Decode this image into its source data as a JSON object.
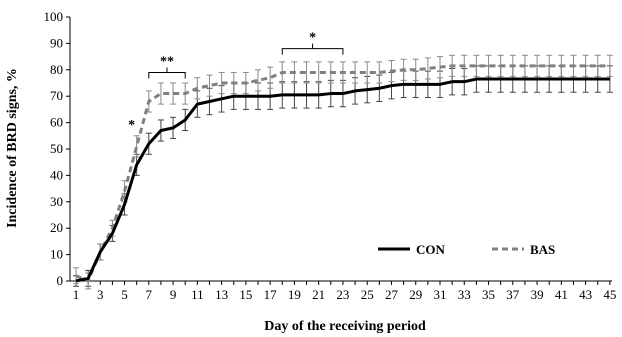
{
  "chart_data": {
    "type": "line",
    "xlabel": "Day of the receiving period",
    "ylabel": "Incidence of BRD signs, %",
    "xlim": [
      1,
      45
    ],
    "ylim": [
      0,
      100
    ],
    "x_ticks": [
      1,
      3,
      5,
      7,
      9,
      11,
      13,
      15,
      17,
      19,
      21,
      23,
      25,
      27,
      29,
      31,
      33,
      35,
      37,
      39,
      41,
      43,
      45
    ],
    "y_ticks": [
      0,
      10,
      20,
      30,
      40,
      50,
      60,
      70,
      80,
      90,
      100
    ],
    "grid": false,
    "legend_position": "bottom-right",
    "error_bars": true,
    "x": [
      1,
      2,
      3,
      4,
      5,
      6,
      7,
      8,
      9,
      10,
      11,
      12,
      13,
      14,
      15,
      16,
      17,
      18,
      19,
      20,
      21,
      22,
      23,
      24,
      25,
      26,
      27,
      28,
      29,
      30,
      31,
      32,
      33,
      34,
      35,
      36,
      37,
      38,
      39,
      40,
      41,
      42,
      43,
      44,
      45
    ],
    "series": [
      {
        "name": "CON",
        "style": "solid",
        "color": "#000000",
        "values": [
          0,
          1,
          11,
          18,
          29,
          44,
          52,
          57,
          58,
          61,
          67,
          68,
          69,
          70,
          70,
          70,
          70,
          70.5,
          70.5,
          70.5,
          70.5,
          71,
          71,
          72,
          72.5,
          73,
          74,
          74.5,
          74.5,
          74.5,
          74.5,
          75.5,
          75.5,
          76.5,
          76.5,
          76.5,
          76.5,
          76.5,
          76.5,
          76.5,
          76.5,
          76.5,
          76.5,
          76.5,
          76.5
        ],
        "errors": [
          2,
          3,
          3,
          3,
          4,
          4,
          4,
          4,
          4,
          4,
          5,
          5,
          5,
          5,
          5,
          5,
          5,
          5,
          5,
          5,
          5,
          5,
          5,
          5,
          5,
          5,
          5,
          5,
          5,
          5,
          5,
          5,
          5,
          5,
          5,
          5,
          5,
          5,
          5,
          5,
          5,
          5,
          5,
          5,
          5
        ]
      },
      {
        "name": "BAS",
        "style": "dashed",
        "color": "#808080",
        "values": [
          2,
          0,
          11,
          20,
          34,
          51,
          68,
          71,
          71,
          71,
          73,
          74,
          75,
          75,
          75,
          76,
          77,
          79,
          79,
          79,
          79,
          79,
          79,
          79,
          79,
          79,
          79.5,
          80,
          80,
          80.5,
          81,
          81.5,
          81.5,
          81.5,
          81.5,
          81.5,
          81.5,
          81.5,
          81.5,
          81.5,
          81.5,
          81.5,
          81.5,
          81.5,
          81.5
        ],
        "errors": [
          3,
          3,
          3,
          3,
          4,
          4,
          4,
          4,
          4,
          4,
          4,
          4,
          4,
          4,
          4,
          4,
          4,
          4,
          4,
          4,
          4,
          4,
          4,
          4,
          4,
          4,
          4,
          4,
          4,
          4,
          4,
          4,
          4,
          4,
          4,
          4,
          4,
          4,
          4,
          4,
          4,
          4,
          4,
          4,
          4
        ]
      }
    ],
    "annotations": [
      {
        "label": "*",
        "x": 6,
        "y": 59,
        "type": "star"
      },
      {
        "label": "**",
        "x_start": 7,
        "x_end": 10,
        "y": 79,
        "type": "bracket"
      },
      {
        "label": "*",
        "x_start": 18,
        "x_end": 23,
        "y": 88,
        "type": "bracket"
      }
    ]
  }
}
